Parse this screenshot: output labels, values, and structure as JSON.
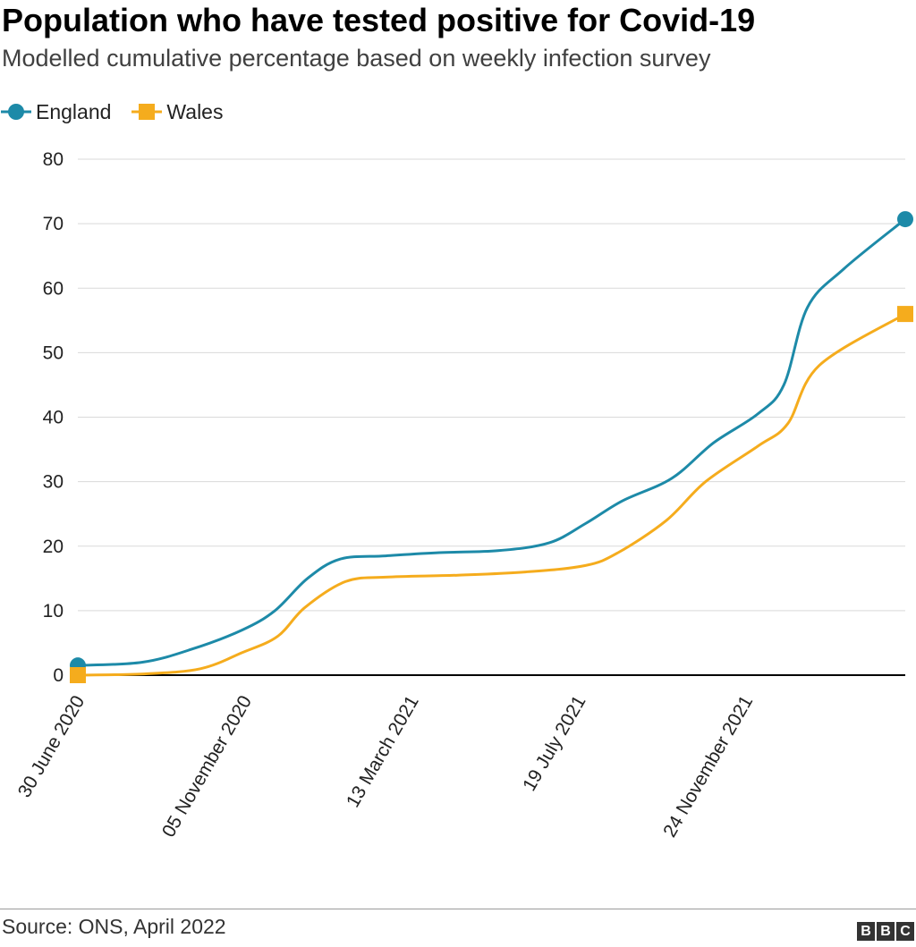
{
  "header": {
    "title": "Population who have tested positive for Covid-19",
    "subtitle": "Modelled cumulative percentage based on weekly infection survey"
  },
  "footer": {
    "source": "Source: ONS, April 2022",
    "logo": [
      "B",
      "B",
      "C"
    ]
  },
  "colors": {
    "england": "#1d8aa8",
    "wales": "#f5ac1d",
    "grid": "#d9d9d9",
    "baseline": "#000000"
  },
  "chart_data": {
    "type": "line",
    "title": "Population who have tested positive for Covid-19",
    "subtitle": "Modelled cumulative percentage based on weekly infection survey",
    "xlabel": "",
    "ylabel": "",
    "ylim": [
      0,
      80
    ],
    "yticks": [
      0,
      10,
      20,
      30,
      40,
      50,
      60,
      70,
      80
    ],
    "xlim": [
      "2020-06-30",
      "2022-03-26"
    ],
    "xticks": [
      {
        "date": "2020-06-30",
        "label": "30 June 2020"
      },
      {
        "date": "2020-11-05",
        "label": "05 November 2020"
      },
      {
        "date": "2021-03-13",
        "label": "13 March 2021"
      },
      {
        "date": "2021-07-19",
        "label": "19 July 2021"
      },
      {
        "date": "2021-11-24",
        "label": "24 November 2021"
      }
    ],
    "grid": true,
    "legend_position": "top-left",
    "series": [
      {
        "name": "England",
        "marker": "circle",
        "points": [
          {
            "x": "2020-06-30",
            "y": 1.5
          },
          {
            "x": "2020-08-18",
            "y": 2
          },
          {
            "x": "2020-09-25",
            "y": 4
          },
          {
            "x": "2020-11-03",
            "y": 7
          },
          {
            "x": "2020-11-28",
            "y": 10
          },
          {
            "x": "2020-12-23",
            "y": 15
          },
          {
            "x": "2021-01-17",
            "y": 18
          },
          {
            "x": "2021-02-21",
            "y": 18.5
          },
          {
            "x": "2021-04-03",
            "y": 19
          },
          {
            "x": "2021-05-18",
            "y": 19.3
          },
          {
            "x": "2021-06-26",
            "y": 20.5
          },
          {
            "x": "2021-07-24",
            "y": 23.5
          },
          {
            "x": "2021-08-21",
            "y": 27
          },
          {
            "x": "2021-09-28",
            "y": 30.5
          },
          {
            "x": "2021-10-30",
            "y": 36
          },
          {
            "x": "2021-12-03",
            "y": 40.5
          },
          {
            "x": "2021-12-23",
            "y": 45
          },
          {
            "x": "2022-01-10",
            "y": 57
          },
          {
            "x": "2022-02-07",
            "y": 63
          },
          {
            "x": "2022-03-26",
            "y": 70.7
          }
        ]
      },
      {
        "name": "Wales",
        "marker": "square",
        "points": [
          {
            "x": "2020-06-30",
            "y": 0
          },
          {
            "x": "2020-08-20",
            "y": 0.2
          },
          {
            "x": "2020-10-02",
            "y": 1
          },
          {
            "x": "2020-11-03",
            "y": 3.5
          },
          {
            "x": "2020-11-30",
            "y": 6
          },
          {
            "x": "2020-12-21",
            "y": 10.5
          },
          {
            "x": "2021-01-21",
            "y": 14.5
          },
          {
            "x": "2021-02-21",
            "y": 15.2
          },
          {
            "x": "2021-04-17",
            "y": 15.5
          },
          {
            "x": "2021-06-08",
            "y": 16
          },
          {
            "x": "2021-07-24",
            "y": 17
          },
          {
            "x": "2021-08-18",
            "y": 19
          },
          {
            "x": "2021-09-24",
            "y": 24
          },
          {
            "x": "2021-10-24",
            "y": 30
          },
          {
            "x": "2021-12-03",
            "y": 35.5
          },
          {
            "x": "2021-12-26",
            "y": 39
          },
          {
            "x": "2022-01-19",
            "y": 48
          },
          {
            "x": "2022-03-26",
            "y": 56
          }
        ]
      }
    ]
  }
}
